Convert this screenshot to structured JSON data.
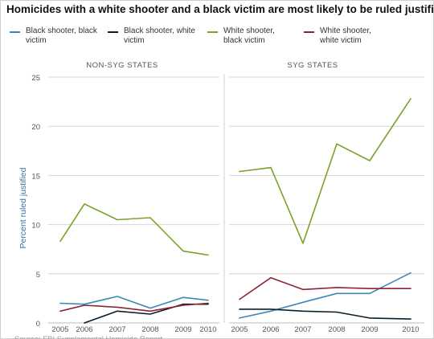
{
  "title": "Homicides with a white shooter and a black victim are most likely to be ruled justified",
  "colors": {
    "black_shooter_black_victim": "#3d86b8",
    "black_shooter_white_victim": "#0b1e2c",
    "white_shooter_black_victim": "#7aa22a",
    "white_shooter_white_victim": "#8e2433",
    "axis_text": "#555555",
    "ylabel": "#3d6f9e",
    "grid": "#d4d4d4"
  },
  "legend": [
    {
      "key": "bb",
      "label": "Black shooter, black victim",
      "color": "#3d86b8"
    },
    {
      "key": "bw",
      "label": "Black shooter, white victim",
      "color": "#0b1e2c"
    },
    {
      "key": "wb",
      "label": "White shooter, black victim",
      "color": "#7aa22a"
    },
    {
      "key": "ww",
      "label": "White shooter, white victim",
      "color": "#8e2433"
    }
  ],
  "footer_source": "Source: FBI Supplemental Homicide Report",
  "chart_data": [
    {
      "type": "line",
      "panel_title": "NON-SYG STATES",
      "ylabel": "Percent ruled justified",
      "x": [
        "2005",
        "2006",
        "2007",
        "2008",
        "2009",
        "2010"
      ],
      "ylim": [
        0,
        25
      ],
      "yticks": [
        0,
        5,
        10,
        15,
        20,
        25
      ],
      "grid": true,
      "series": [
        {
          "name": "Black shooter, black victim",
          "color": "#3d86b8",
          "values": [
            2.0,
            1.9,
            2.7,
            1.5,
            2.6,
            2.3
          ]
        },
        {
          "name": "Black shooter, white victim",
          "color": "#0b1e2c",
          "values": [
            null,
            0.0,
            1.2,
            0.9,
            1.9,
            1.9
          ]
        },
        {
          "name": "White shooter, black victim",
          "color": "#7aa22a",
          "values": [
            8.3,
            12.1,
            10.5,
            10.7,
            7.3,
            6.9
          ]
        },
        {
          "name": "White shooter, white victim",
          "color": "#8e2433",
          "values": [
            1.2,
            1.8,
            1.6,
            1.2,
            1.8,
            2.0
          ]
        }
      ]
    },
    {
      "type": "line",
      "panel_title": "SYG STATES",
      "x": [
        "2005",
        "2006",
        "2007",
        "2008",
        "2009",
        "2010"
      ],
      "ylim": [
        0,
        25
      ],
      "grid": true,
      "series": [
        {
          "name": "Black shooter, black victim",
          "color": "#3d86b8",
          "values": [
            0.5,
            1.2,
            2.1,
            3.0,
            3.0,
            5.1
          ]
        },
        {
          "name": "Black shooter, white victim",
          "color": "#0b1e2c",
          "values": [
            1.4,
            1.4,
            1.2,
            1.1,
            0.5,
            0.4
          ]
        },
        {
          "name": "White shooter, black victim",
          "color": "#7aa22a",
          "values": [
            15.4,
            15.8,
            8.1,
            18.2,
            16.5,
            22.8
          ]
        },
        {
          "name": "White shooter, white victim",
          "color": "#8e2433",
          "values": [
            2.4,
            4.6,
            3.4,
            3.6,
            3.5,
            3.5
          ]
        }
      ]
    }
  ]
}
